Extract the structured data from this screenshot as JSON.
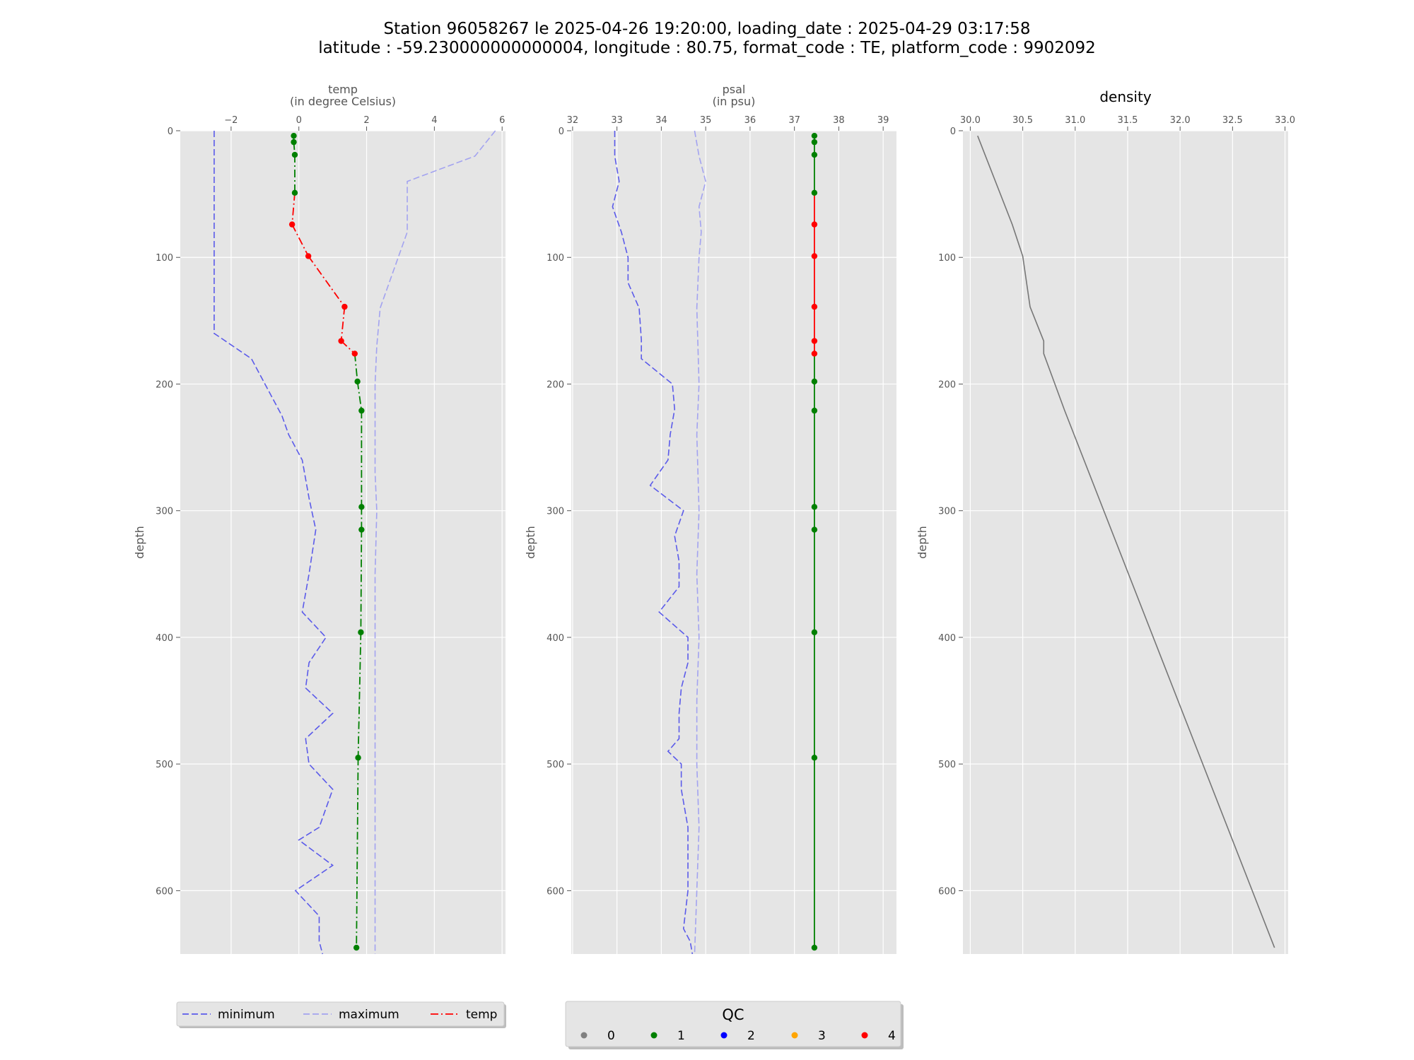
{
  "figure": {
    "title_line1": "Station 96058267 le 2025-04-26 19:20:00, loading_date : 2025-04-29 03:17:58",
    "title_line2": "latitude : -59.230000000000004, longitude : 80.75, format_code : TE, platform_code : 9902092"
  },
  "colors": {
    "background": "#e5e5e5",
    "grid": "#ffffff",
    "minimum": "#5b5bea",
    "maximum": "#a3a3f0",
    "qc1": "#008000",
    "qc4": "#ff0000",
    "density": "#777777"
  },
  "chart_data": [
    {
      "type": "line",
      "name": "temp-panel",
      "xlabel": "temp\n(in degree Celsius)",
      "xlabel_line1": "temp",
      "xlabel_line2": "(in degree Celsius)",
      "ylabel": "depth",
      "xlim": [
        -3.5,
        6.1
      ],
      "ylim": [
        650,
        0
      ],
      "y_inverted": true,
      "xaxis_position": "top",
      "xticks": [
        -2,
        0,
        2,
        4,
        6
      ],
      "xtick_labels": [
        "−2",
        "0",
        "2",
        "4",
        "6"
      ],
      "yticks": [
        0,
        100,
        200,
        300,
        400,
        500,
        600
      ],
      "grid": true,
      "series": [
        {
          "name": "minimum",
          "style": "dashed",
          "color": "#5b5bea",
          "points": [
            [
              -2.5,
              0
            ],
            [
              -2.5,
              160
            ],
            [
              -1.4,
              180
            ],
            [
              -1.0,
              200
            ],
            [
              -0.5,
              225
            ],
            [
              -0.3,
              240
            ],
            [
              0.1,
              260
            ],
            [
              0.3,
              290
            ],
            [
              0.5,
              315
            ],
            [
              0.3,
              350
            ],
            [
              0.1,
              380
            ],
            [
              0.8,
              400
            ],
            [
              0.3,
              420
            ],
            [
              0.2,
              440
            ],
            [
              1.0,
              460
            ],
            [
              0.2,
              480
            ],
            [
              0.3,
              500
            ],
            [
              1.0,
              520
            ],
            [
              0.6,
              550
            ],
            [
              0.0,
              560
            ],
            [
              1.0,
              580
            ],
            [
              -0.1,
              600
            ],
            [
              0.6,
              620
            ],
            [
              0.6,
              640
            ],
            [
              0.7,
              650
            ]
          ]
        },
        {
          "name": "maximum",
          "style": "dashed",
          "color": "#a3a3f0",
          "points": [
            [
              5.8,
              0
            ],
            [
              5.2,
              20
            ],
            [
              3.2,
              40
            ],
            [
              3.2,
              80
            ],
            [
              2.8,
              110
            ],
            [
              2.4,
              140
            ],
            [
              2.3,
              170
            ],
            [
              2.25,
              200
            ],
            [
              2.25,
              270
            ],
            [
              2.3,
              300
            ],
            [
              2.25,
              350
            ],
            [
              2.25,
              450
            ],
            [
              2.25,
              550
            ],
            [
              2.25,
              650
            ]
          ]
        },
        {
          "name": "temp",
          "style": "dashdot",
          "points": [
            [
              -0.15,
              4,
              1
            ],
            [
              -0.15,
              9,
              1
            ],
            [
              -0.12,
              19,
              1
            ],
            [
              -0.12,
              49,
              1
            ],
            [
              -0.2,
              74,
              4
            ],
            [
              0.28,
              99,
              4
            ],
            [
              1.35,
              139,
              4
            ],
            [
              1.25,
              166,
              4
            ],
            [
              1.65,
              176,
              4
            ],
            [
              1.73,
              198,
              1
            ],
            [
              1.85,
              221,
              1
            ],
            [
              1.85,
              297,
              1
            ],
            [
              1.85,
              315,
              1
            ],
            [
              1.83,
              396,
              1
            ],
            [
              1.75,
              495,
              1
            ],
            [
              1.7,
              645,
              1
            ]
          ]
        }
      ]
    },
    {
      "type": "line",
      "name": "psal-panel",
      "xlabel": "psal\n(in psu)",
      "xlabel_line1": "psal",
      "xlabel_line2": "(in psu)",
      "ylabel": "depth",
      "xlim": [
        31.97,
        39.3
      ],
      "ylim": [
        650,
        0
      ],
      "y_inverted": true,
      "xaxis_position": "top",
      "xticks": [
        32,
        33,
        34,
        35,
        36,
        37,
        38,
        39
      ],
      "xtick_labels": [
        "32",
        "33",
        "34",
        "35",
        "36",
        "37",
        "38",
        "39"
      ],
      "yticks": [
        0,
        100,
        200,
        300,
        400,
        500,
        600
      ],
      "grid": true,
      "series": [
        {
          "name": "minimum",
          "style": "dashed",
          "color": "#5b5bea",
          "points": [
            [
              32.95,
              0
            ],
            [
              32.95,
              20
            ],
            [
              33.05,
              40
            ],
            [
              32.9,
              60
            ],
            [
              33.1,
              80
            ],
            [
              33.25,
              100
            ],
            [
              33.25,
              120
            ],
            [
              33.5,
              140
            ],
            [
              33.55,
              165
            ],
            [
              33.55,
              180
            ],
            [
              34.25,
              200
            ],
            [
              34.3,
              220
            ],
            [
              34.2,
              240
            ],
            [
              34.15,
              260
            ],
            [
              33.75,
              280
            ],
            [
              34.5,
              300
            ],
            [
              34.3,
              320
            ],
            [
              34.4,
              340
            ],
            [
              34.4,
              360
            ],
            [
              33.95,
              380
            ],
            [
              34.6,
              400
            ],
            [
              34.6,
              420
            ],
            [
              34.45,
              440
            ],
            [
              34.4,
              460
            ],
            [
              34.4,
              480
            ],
            [
              34.15,
              490
            ],
            [
              34.45,
              500
            ],
            [
              34.45,
              520
            ],
            [
              34.6,
              550
            ],
            [
              34.6,
              570
            ],
            [
              34.6,
              600
            ],
            [
              34.55,
              615
            ],
            [
              34.5,
              630
            ],
            [
              34.65,
              640
            ],
            [
              34.7,
              650
            ]
          ]
        },
        {
          "name": "maximum",
          "style": "dashed",
          "color": "#a3a3f0",
          "points": [
            [
              34.75,
              0
            ],
            [
              34.85,
              20
            ],
            [
              35.0,
              40
            ],
            [
              34.85,
              60
            ],
            [
              34.9,
              80
            ],
            [
              34.85,
              100
            ],
            [
              34.8,
              140
            ],
            [
              34.85,
              200
            ],
            [
              34.8,
              240
            ],
            [
              34.85,
              300
            ],
            [
              34.8,
              350
            ],
            [
              34.85,
              400
            ],
            [
              34.8,
              450
            ],
            [
              34.8,
              500
            ],
            [
              34.85,
              550
            ],
            [
              34.8,
              600
            ],
            [
              34.75,
              650
            ]
          ]
        },
        {
          "name": "psal",
          "style": "solid",
          "points": [
            [
              37.45,
              4,
              1
            ],
            [
              37.45,
              9,
              1
            ],
            [
              37.45,
              19,
              1
            ],
            [
              37.45,
              49,
              1
            ],
            [
              37.45,
              74,
              4
            ],
            [
              37.45,
              99,
              4
            ],
            [
              37.45,
              139,
              4
            ],
            [
              37.45,
              166,
              4
            ],
            [
              37.45,
              176,
              4
            ],
            [
              37.45,
              198,
              1
            ],
            [
              37.45,
              221,
              1
            ],
            [
              37.45,
              297,
              1
            ],
            [
              37.45,
              315,
              1
            ],
            [
              37.45,
              396,
              1
            ],
            [
              37.45,
              495,
              1
            ],
            [
              37.45,
              645,
              1
            ]
          ]
        }
      ]
    },
    {
      "type": "line",
      "name": "density-panel",
      "title": "density",
      "ylabel": "depth",
      "xlim": [
        29.93,
        33.03
      ],
      "ylim": [
        650,
        0
      ],
      "y_inverted": true,
      "xaxis_position": "top",
      "xticks": [
        30.0,
        30.5,
        31.0,
        31.5,
        32.0,
        32.5,
        33.0
      ],
      "xtick_labels": [
        "30.0",
        "30.5",
        "31.0",
        "31.5",
        "32.0",
        "32.5",
        "33.0"
      ],
      "yticks": [
        0,
        100,
        200,
        300,
        400,
        500,
        600
      ],
      "grid": true,
      "series": [
        {
          "name": "density",
          "style": "solid",
          "color": "#777777",
          "points": [
            [
              30.07,
              4
            ],
            [
              30.4,
              74
            ],
            [
              30.5,
              99
            ],
            [
              30.57,
              139
            ],
            [
              30.7,
              166
            ],
            [
              30.7,
              176
            ],
            [
              30.9,
              221
            ],
            [
              32.9,
              645
            ]
          ]
        }
      ]
    }
  ],
  "legends": {
    "lines": {
      "items": [
        {
          "label": "minimum",
          "style": "dashed",
          "color": "#5b5bea"
        },
        {
          "label": "maximum",
          "style": "dashed",
          "color": "#a3a3f0"
        },
        {
          "label": "temp",
          "style": "dashdot",
          "color": "#ff0000"
        }
      ]
    },
    "qc": {
      "title": "QC",
      "items": [
        {
          "label": "0",
          "color": "#808080"
        },
        {
          "label": "1",
          "color": "#008000"
        },
        {
          "label": "2",
          "color": "#0000ff"
        },
        {
          "label": "3",
          "color": "#ffa500"
        },
        {
          "label": "4",
          "color": "#ff0000"
        }
      ]
    }
  }
}
